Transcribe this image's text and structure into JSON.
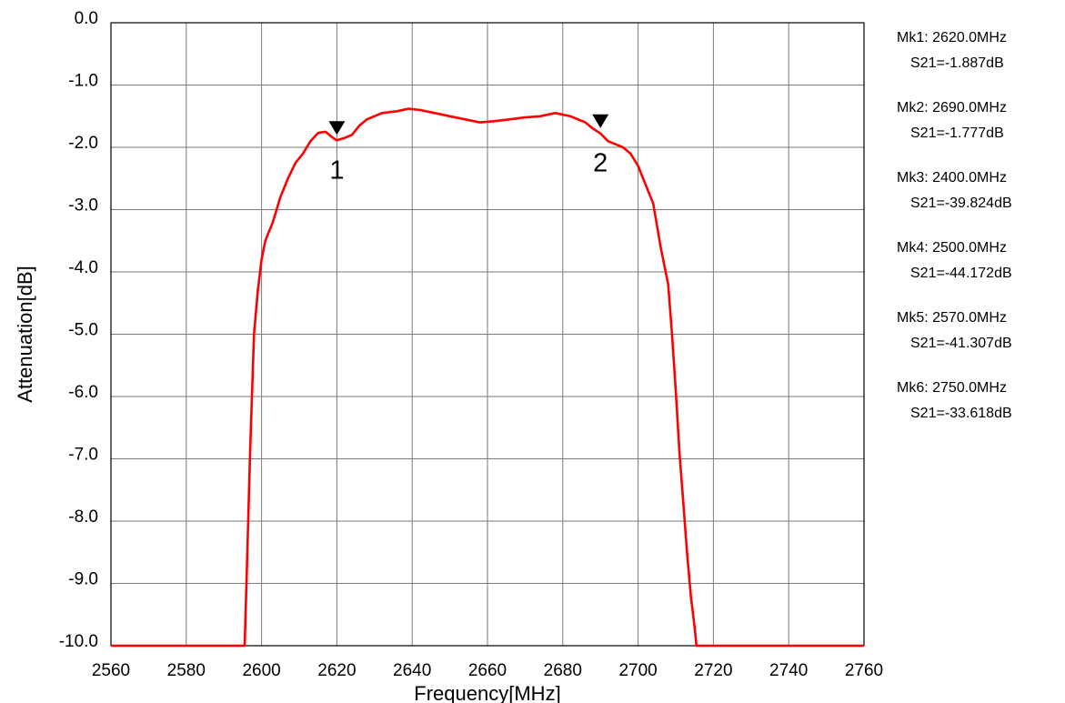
{
  "chart_data": {
    "type": "line",
    "title": "",
    "xlabel": "Frequency[MHz]",
    "ylabel": "Attenuation[dB]",
    "xlim": [
      2560,
      2760
    ],
    "ylim": [
      -10.0,
      0.0
    ],
    "xticks": [
      2560,
      2580,
      2600,
      2620,
      2640,
      2660,
      2680,
      2700,
      2720,
      2740,
      2760
    ],
    "yticks": [
      "0.0",
      "-1.0",
      "-2.0",
      "-3.0",
      "-4.0",
      "-5.0",
      "-6.0",
      "-7.0",
      "-8.0",
      "-9.0",
      "-10.0"
    ],
    "grid": true,
    "legend": "none",
    "line_color": "#ff0000",
    "series": [
      {
        "x": [
          2560,
          2580,
          2595.5,
          2596,
          2597,
          2598,
          2599,
          2600,
          2601,
          2603,
          2605,
          2607,
          2609,
          2611,
          2613,
          2615,
          2617,
          2619,
          2620,
          2622,
          2624,
          2626,
          2628,
          2632,
          2636,
          2639,
          2642,
          2646,
          2650,
          2654,
          2658,
          2662,
          2666,
          2670,
          2674,
          2678,
          2682,
          2686,
          2688,
          2690,
          2692,
          2694,
          2696,
          2698,
          2700,
          2702,
          2704,
          2706,
          2708,
          2709,
          2710,
          2711,
          2712,
          2713,
          2714,
          2715,
          2715.5,
          2716,
          2720,
          2740,
          2760
        ],
        "y": [
          -10.0,
          -10.0,
          -10.0,
          -9.0,
          -6.8,
          -5.0,
          -4.3,
          -3.8,
          -3.5,
          -3.2,
          -2.8,
          -2.5,
          -2.25,
          -2.1,
          -1.9,
          -1.77,
          -1.75,
          -1.85,
          -1.887,
          -1.85,
          -1.8,
          -1.65,
          -1.55,
          -1.45,
          -1.42,
          -1.38,
          -1.4,
          -1.45,
          -1.5,
          -1.55,
          -1.6,
          -1.58,
          -1.55,
          -1.52,
          -1.5,
          -1.45,
          -1.5,
          -1.6,
          -1.7,
          -1.777,
          -1.9,
          -1.95,
          -2.0,
          -2.1,
          -2.3,
          -2.6,
          -2.9,
          -3.6,
          -4.2,
          -5.0,
          -5.9,
          -6.9,
          -7.7,
          -8.5,
          -9.2,
          -9.7,
          -10.0,
          -10.0,
          -10.0,
          -10.0,
          -10.0
        ]
      }
    ],
    "markers": [
      {
        "label": "1",
        "x": 2620.0,
        "y": -1.887
      },
      {
        "label": "2",
        "x": 2690.0,
        "y": -1.777
      }
    ]
  },
  "marker_readouts": [
    {
      "freq": "Mk1: 2620.0MHz",
      "s21": "S21=-1.887dB"
    },
    {
      "freq": "Mk2: 2690.0MHz",
      "s21": "S21=-1.777dB"
    },
    {
      "freq": "Mk3: 2400.0MHz",
      "s21": "S21=-39.824dB"
    },
    {
      "freq": "Mk4: 2500.0MHz",
      "s21": "S21=-44.172dB"
    },
    {
      "freq": "Mk5: 2570.0MHz",
      "s21": "S21=-41.307dB"
    },
    {
      "freq": "Mk6: 2750.0MHz",
      "s21": "S21=-33.618dB"
    }
  ]
}
